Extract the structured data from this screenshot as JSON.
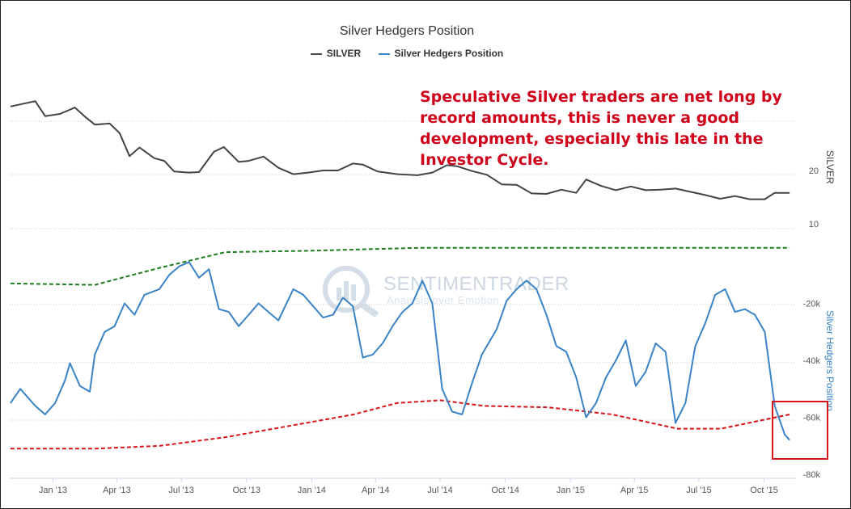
{
  "title": "Silver Hedgers Position",
  "legend": [
    {
      "name": "SILVER",
      "color": "#444444"
    },
    {
      "name": "Silver Hedgers Position",
      "color": "#3a83c6"
    }
  ],
  "annotation": "Speculative Silver traders are net long by record amounts, this is never a good development, especially this late in the Investor Cycle.",
  "watermark": {
    "name": "SENTIMENTRADER",
    "tagline": "Analysis over Emotion"
  },
  "colors": {
    "silver": "#444444",
    "hedgers": "#3a83c6",
    "upper_band": "#1e7d1e",
    "lower_band": "#d7141a",
    "highlight": "#d7141a",
    "grid": "#c8c8c8",
    "axis_text": "#555555"
  },
  "chart_data": {
    "type": "line",
    "title": "Silver Hedgers Position",
    "x_tick_labels": [
      "Jan '13",
      "Apr '13",
      "Jul '13",
      "Oct '13",
      "Jan '14",
      "Apr '14",
      "Jul '14",
      "Oct '14",
      "Jan '15",
      "Apr '15",
      "Jul '15",
      "Oct '15"
    ],
    "x_range": [
      "Nov '12",
      "Nov '15"
    ],
    "panels": [
      {
        "name": "price",
        "axis_title": "SILVER",
        "y_tick_labels": [
          "20",
          "10"
        ],
        "y_range": [
          5,
          35
        ],
        "series": [
          {
            "name": "SILVER",
            "points": [
              [
                "2012-11-02",
                32.0
              ],
              [
                "2012-11-16",
                32.4
              ],
              [
                "2012-12-07",
                33.0
              ],
              [
                "2012-12-21",
                30.2
              ],
              [
                "2013-01-11",
                30.6
              ],
              [
                "2013-02-01",
                31.8
              ],
              [
                "2013-02-15",
                30.1
              ],
              [
                "2013-03-01",
                28.6
              ],
              [
                "2013-03-22",
                28.8
              ],
              [
                "2013-04-05",
                27.0
              ],
              [
                "2013-04-19",
                22.7
              ],
              [
                "2013-05-03",
                24.3
              ],
              [
                "2013-05-24",
                22.3
              ],
              [
                "2013-06-07",
                21.8
              ],
              [
                "2013-06-21",
                19.8
              ],
              [
                "2013-07-12",
                19.6
              ],
              [
                "2013-07-26",
                19.7
              ],
              [
                "2013-08-16",
                23.5
              ],
              [
                "2013-08-30",
                24.4
              ],
              [
                "2013-09-20",
                21.6
              ],
              [
                "2013-10-04",
                21.8
              ],
              [
                "2013-10-25",
                22.6
              ],
              [
                "2013-11-15",
                20.5
              ],
              [
                "2013-12-06",
                19.3
              ],
              [
                "2013-12-27",
                19.6
              ],
              [
                "2014-01-17",
                20.0
              ],
              [
                "2014-02-07",
                20.0
              ],
              [
                "2014-02-28",
                21.3
              ],
              [
                "2014-03-14",
                21.1
              ],
              [
                "2014-04-04",
                19.8
              ],
              [
                "2014-05-02",
                19.3
              ],
              [
                "2014-05-30",
                19.1
              ],
              [
                "2014-06-20",
                19.6
              ],
              [
                "2014-07-11",
                21.0
              ],
              [
                "2014-07-25",
                20.8
              ],
              [
                "2014-08-15",
                19.9
              ],
              [
                "2014-09-05",
                19.2
              ],
              [
                "2014-09-26",
                17.4
              ],
              [
                "2014-10-17",
                17.3
              ],
              [
                "2014-11-07",
                15.7
              ],
              [
                "2014-11-28",
                15.6
              ],
              [
                "2014-12-19",
                16.4
              ],
              [
                "2015-01-09",
                15.8
              ],
              [
                "2015-01-23",
                18.3
              ],
              [
                "2015-02-13",
                17.1
              ],
              [
                "2015-03-06",
                16.3
              ],
              [
                "2015-03-27",
                17.0
              ],
              [
                "2015-04-17",
                16.3
              ],
              [
                "2015-05-08",
                16.4
              ],
              [
                "2015-05-29",
                16.6
              ],
              [
                "2015-06-19",
                16.0
              ],
              [
                "2015-07-10",
                15.4
              ],
              [
                "2015-07-31",
                14.7
              ],
              [
                "2015-08-21",
                15.2
              ],
              [
                "2015-09-11",
                14.6
              ],
              [
                "2015-10-02",
                14.6
              ],
              [
                "2015-10-16",
                15.8
              ],
              [
                "2015-11-06",
                15.8
              ]
            ]
          }
        ]
      },
      {
        "name": "hedgers",
        "axis_title": "Silver Hedgers Position",
        "y_tick_labels": [
          "-20k",
          "-40k",
          "-60k",
          "-80k"
        ],
        "y_range": [
          -80000,
          0
        ],
        "series": [
          {
            "name": "Silver Hedgers Position",
            "points": [
              [
                "2012-11-02",
                -55000
              ],
              [
                "2012-11-16",
                -50000
              ],
              [
                "2012-12-07",
                -56000
              ],
              [
                "2012-12-21",
                -59000
              ],
              [
                "2013-01-04",
                -55000
              ],
              [
                "2013-01-18",
                -47000
              ],
              [
                "2013-01-25",
                -41000
              ],
              [
                "2013-02-08",
                -49000
              ],
              [
                "2013-02-22",
                -51000
              ],
              [
                "2013-03-01",
                -38000
              ],
              [
                "2013-03-15",
                -30000
              ],
              [
                "2013-03-29",
                -28000
              ],
              [
                "2013-04-12",
                -20000
              ],
              [
                "2013-04-26",
                -24000
              ],
              [
                "2013-05-10",
                -17000
              ],
              [
                "2013-05-31",
                -15000
              ],
              [
                "2013-06-14",
                -10000
              ],
              [
                "2013-06-28",
                -7000
              ],
              [
                "2013-07-12",
                -5500
              ],
              [
                "2013-07-26",
                -11000
              ],
              [
                "2013-08-09",
                -8000
              ],
              [
                "2013-08-23",
                -22000
              ],
              [
                "2013-09-06",
                -23000
              ],
              [
                "2013-09-20",
                -28000
              ],
              [
                "2013-10-04",
                -24000
              ],
              [
                "2013-10-18",
                -20000
              ],
              [
                "2013-11-01",
                -23000
              ],
              [
                "2013-11-15",
                -26000
              ],
              [
                "2013-12-06",
                -15000
              ],
              [
                "2013-12-20",
                -17000
              ],
              [
                "2014-01-03",
                -21000
              ],
              [
                "2014-01-17",
                -25000
              ],
              [
                "2014-01-31",
                -24000
              ],
              [
                "2014-02-14",
                -18000
              ],
              [
                "2014-02-28",
                -21000
              ],
              [
                "2014-03-14",
                -39000
              ],
              [
                "2014-03-28",
                -38000
              ],
              [
                "2014-04-11",
                -34000
              ],
              [
                "2014-04-25",
                -28000
              ],
              [
                "2014-05-09",
                -23000
              ],
              [
                "2014-05-23",
                -20000
              ],
              [
                "2014-06-06",
                -12000
              ],
              [
                "2014-06-20",
                -20000
              ],
              [
                "2014-07-04",
                -50000
              ],
              [
                "2014-07-18",
                -58000
              ],
              [
                "2014-08-01",
                -59000
              ],
              [
                "2014-08-15",
                -48000
              ],
              [
                "2014-08-29",
                -38000
              ],
              [
                "2014-09-19",
                -29000
              ],
              [
                "2014-10-03",
                -19000
              ],
              [
                "2014-10-17",
                -15000
              ],
              [
                "2014-10-31",
                -12000
              ],
              [
                "2014-11-14",
                -15000
              ],
              [
                "2014-11-28",
                -24000
              ],
              [
                "2014-12-12",
                -35000
              ],
              [
                "2014-12-26",
                -37000
              ],
              [
                "2015-01-09",
                -46000
              ],
              [
                "2015-01-23",
                -60000
              ],
              [
                "2015-02-06",
                -55000
              ],
              [
                "2015-02-20",
                -46000
              ],
              [
                "2015-03-06",
                -40000
              ],
              [
                "2015-03-20",
                -33000
              ],
              [
                "2015-04-03",
                -49000
              ],
              [
                "2015-04-17",
                -44000
              ],
              [
                "2015-05-01",
                -34000
              ],
              [
                "2015-05-15",
                -37000
              ],
              [
                "2015-05-29",
                -62000
              ],
              [
                "2015-06-12",
                -55000
              ],
              [
                "2015-06-26",
                -35000
              ],
              [
                "2015-07-10",
                -27000
              ],
              [
                "2015-07-24",
                -17000
              ],
              [
                "2015-08-07",
                -15000
              ],
              [
                "2015-08-21",
                -23000
              ],
              [
                "2015-09-04",
                -22000
              ],
              [
                "2015-09-18",
                -24000
              ],
              [
                "2015-10-02",
                -30000
              ],
              [
                "2015-10-16",
                -56000
              ],
              [
                "2015-10-30",
                -66000
              ],
              [
                "2015-11-06",
                -68000
              ]
            ]
          },
          {
            "name": "Upper band",
            "points": [
              [
                "2012-11-02",
                -13000
              ],
              [
                "2013-03-01",
                -13500
              ],
              [
                "2013-06-01",
                -7500
              ],
              [
                "2013-09-01",
                -2000
              ],
              [
                "2014-01-01",
                -1500
              ],
              [
                "2014-06-01",
                -500
              ],
              [
                "2015-01-01",
                -500
              ],
              [
                "2015-06-01",
                -500
              ],
              [
                "2015-11-06",
                -500
              ]
            ]
          },
          {
            "name": "Lower band",
            "points": [
              [
                "2012-11-02",
                -71000
              ],
              [
                "2013-03-01",
                -71000
              ],
              [
                "2013-06-01",
                -70000
              ],
              [
                "2013-09-01",
                -67000
              ],
              [
                "2013-12-01",
                -63000
              ],
              [
                "2014-03-01",
                -59000
              ],
              [
                "2014-05-01",
                -55000
              ],
              [
                "2014-07-01",
                -54000
              ],
              [
                "2014-09-01",
                -56000
              ],
              [
                "2014-12-01",
                -56500
              ],
              [
                "2015-03-01",
                -59000
              ],
              [
                "2015-06-01",
                -64000
              ],
              [
                "2015-08-01",
                -64000
              ],
              [
                "2015-11-06",
                -59000
              ]
            ]
          }
        ]
      }
    ],
    "grid": true,
    "legend_position": "top"
  }
}
